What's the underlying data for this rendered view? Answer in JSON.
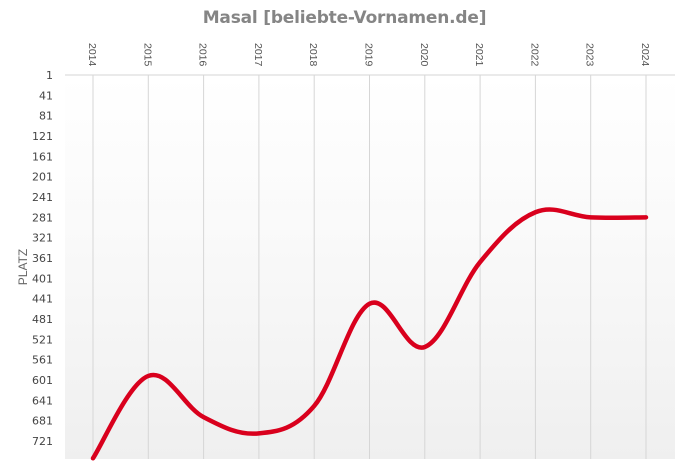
{
  "title": "Masal [beliebte-Vornamen.de]",
  "colors": {
    "line": "#d9001d",
    "grid": "#d6d6d6",
    "title": "#858585"
  },
  "chart_data": {
    "type": "line",
    "title": "Masal [beliebte-Vornamen.de]",
    "xlabel": "",
    "ylabel": "PLATZ",
    "x": [
      "2014",
      "2015",
      "2016",
      "2017",
      "2018",
      "2019",
      "2020",
      "2021",
      "2022",
      "2023",
      "2024"
    ],
    "y_ticks": [
      1,
      41,
      81,
      121,
      161,
      201,
      241,
      281,
      321,
      361,
      401,
      441,
      481,
      521,
      561,
      601,
      641,
      681,
      721
    ],
    "ylim": [
      1,
      755
    ],
    "y_inverted": true,
    "x_axis_position": "top",
    "grid": "vertical",
    "series": [
      {
        "name": "Masal",
        "values": [
          755,
          593,
          674,
          706,
          652,
          451,
          536,
          369,
          271,
          281,
          281
        ]
      }
    ]
  }
}
